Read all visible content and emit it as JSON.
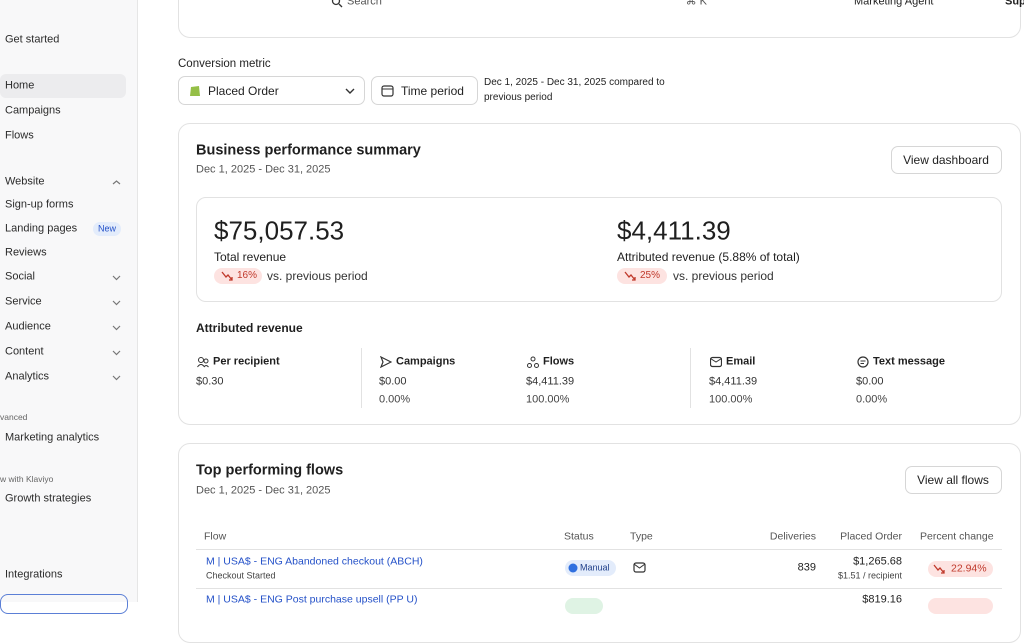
{
  "topbar": {
    "search": "Search",
    "shortcut": "⌘ K",
    "agent": "Marketing Agent",
    "user": "Sup"
  },
  "sidebar": {
    "items": [
      "Get started",
      "Home",
      "Campaigns",
      "Flows",
      "Website",
      "Sign-up forms",
      "Landing pages",
      "Reviews",
      "Social",
      "Service",
      "Audience",
      "Content",
      "Analytics",
      "vanced",
      "Marketing analytics",
      "w with Klaviyo",
      "Growth strategies",
      "Integrations"
    ],
    "badge": "New"
  },
  "filters": {
    "label": "Conversion metric",
    "metric": "Placed Order",
    "time_button": "Time period",
    "range_line1": "Dec 1, 2025 - Dec 31, 2025 compared to",
    "range_line2": "previous period"
  },
  "summary": {
    "title": "Business performance summary",
    "date": "Dec 1, 2025 - Dec 31, 2025",
    "button": "View dashboard",
    "kpis": [
      {
        "value": "$75,057.53",
        "label": "Total revenue",
        "change": "16%",
        "compare": "vs. previous period"
      },
      {
        "value": "$4,411.39",
        "label": "Attributed revenue (5.88% of total)",
        "change": "25%",
        "compare": "vs. previous period"
      }
    ],
    "attributed_title": "Attributed revenue",
    "metrics": [
      {
        "label": "Per recipient",
        "value": "$0.30"
      },
      {
        "label": "Campaigns",
        "value": "$0.00",
        "share": "0.00%"
      },
      {
        "label": "Flows",
        "value": "$4,411.39",
        "share": "100.00%"
      },
      {
        "label": "Email",
        "value": "$4,411.39",
        "share": "100.00%"
      },
      {
        "label": "Text message",
        "value": "$0.00",
        "share": "0.00%"
      }
    ]
  },
  "flows": {
    "title": "Top performing flows",
    "date": "Dec 1, 2025 - Dec 31, 2025",
    "button": "View all flows",
    "table": {
      "columns": [
        "Flow",
        "Status",
        "Type",
        "Deliveries",
        "Placed Order",
        "Percent change"
      ],
      "rows": [
        {
          "name": "M | USA$ - ENG Abandoned checkout (ABCH)",
          "trigger": "Checkout Started",
          "status": "Manual",
          "deliveries": 839,
          "placed_order": "$1,265.68",
          "per_recipient": "$1.51 / recipient",
          "change": "22.94%"
        },
        {
          "name": "M | USA$ - ENG Post purchase upsell (PP U)",
          "placed_order": "$819.16"
        }
      ]
    }
  }
}
